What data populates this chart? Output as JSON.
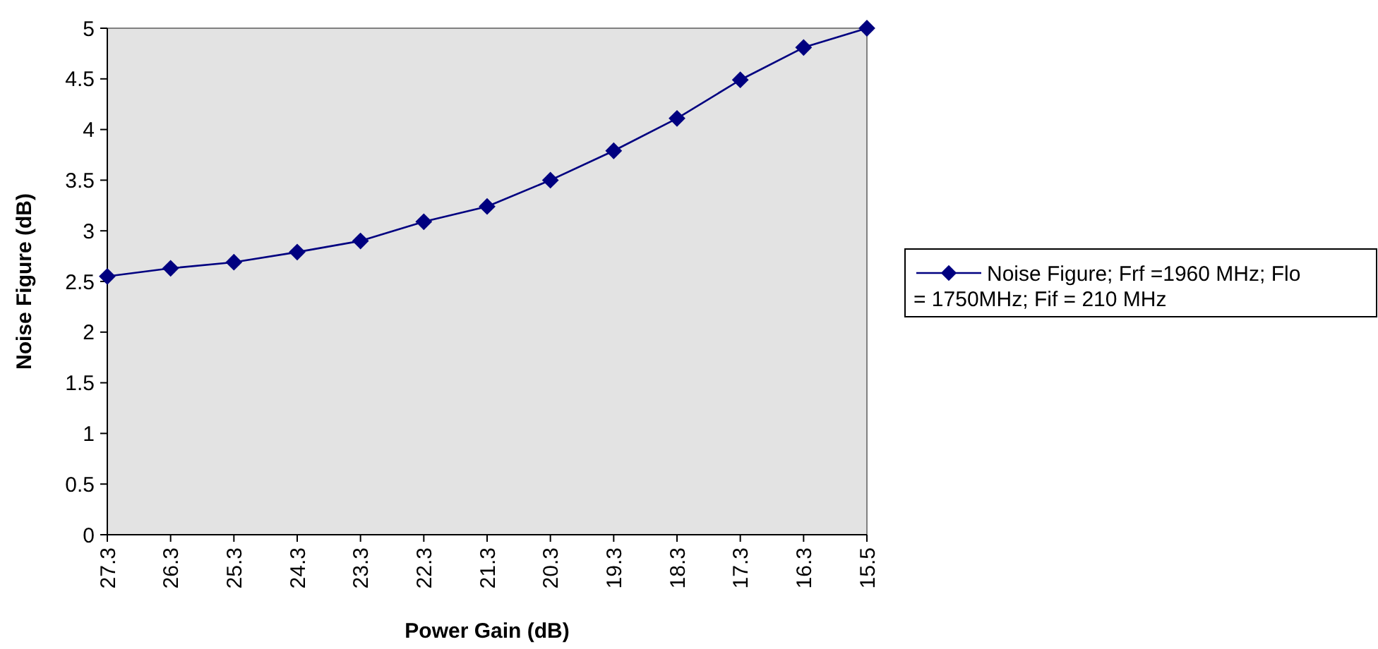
{
  "chart_data": {
    "type": "line",
    "xlabel": "Power Gain (dB)",
    "ylabel": "Noise Figure (dB)",
    "categories": [
      "27.3",
      "26.3",
      "25.3",
      "24.3",
      "23.3",
      "22.3",
      "21.3",
      "20.3",
      "19.3",
      "18.3",
      "17.3",
      "16.3",
      "15.5"
    ],
    "series": [
      {
        "name": "Noise Figure; Frf =1960 MHz; Flo = 1750MHz; Fif = 210 MHz",
        "color": "#000080",
        "values": [
          2.55,
          2.63,
          2.69,
          2.79,
          2.9,
          3.09,
          3.24,
          3.5,
          3.79,
          4.11,
          4.49,
          4.81,
          5.0
        ]
      }
    ],
    "ylim": [
      0,
      5
    ],
    "yticks": [
      0,
      0.5,
      1,
      1.5,
      2,
      2.5,
      3,
      3.5,
      4,
      4.5,
      5
    ],
    "grid": false,
    "legend": "right",
    "marker": "diamond",
    "line_style": "solid"
  }
}
